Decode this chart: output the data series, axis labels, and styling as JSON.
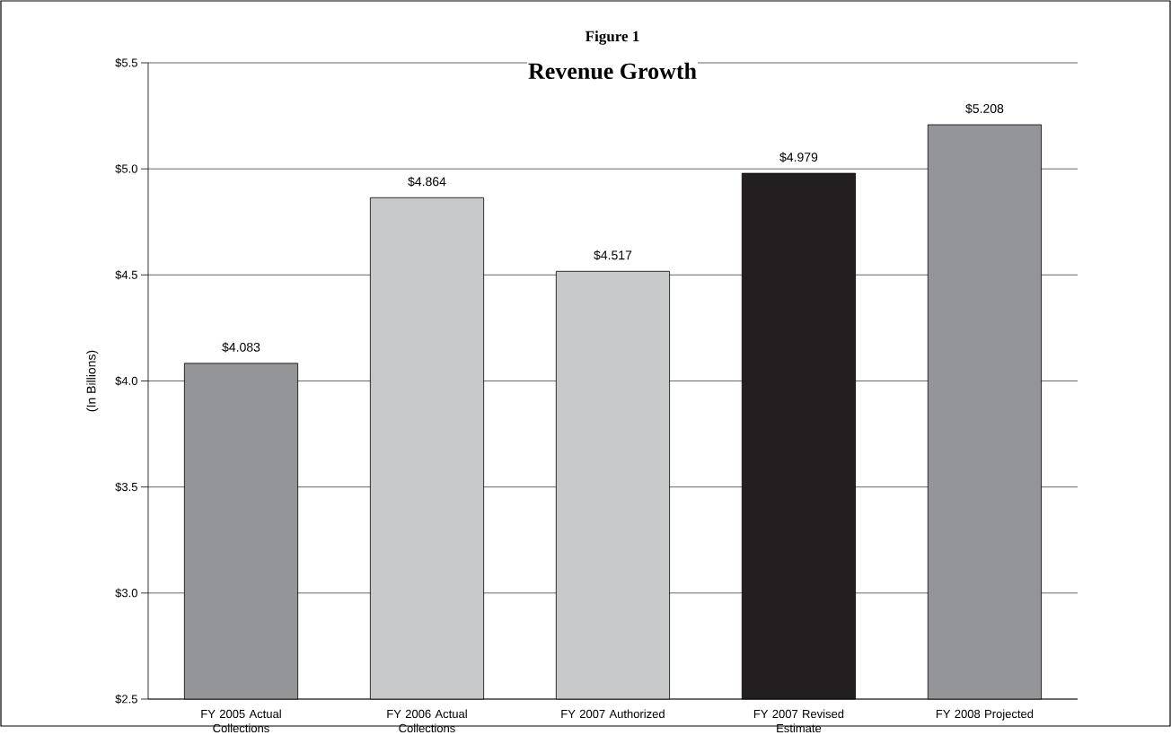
{
  "chart_data": {
    "type": "bar",
    "title": "Figure 1",
    "subtitle": "Revenue Growth",
    "ylabel": "(In Billions)",
    "categories": [
      "FY 2005 Actual Collections",
      "FY 2006 Actual Collections",
      "FY 2007 Authorized",
      "FY 2007 Revised Estimate",
      "FY 2008 Projected"
    ],
    "values": [
      4.083,
      4.864,
      4.517,
      4.979,
      5.208
    ],
    "colors": [
      "#939598",
      "#c7c8ca",
      "#c7c8ca",
      "#231f20",
      "#939598"
    ],
    "value_labels": [
      "$4.083",
      "$4.864",
      "$4.517",
      "$4.979",
      "$5.208"
    ],
    "ylim": [
      2.5,
      5.5
    ],
    "yticks": [
      {
        "value": 2.5,
        "label": "$2.5"
      },
      {
        "value": 3.0,
        "label": "$3.0"
      },
      {
        "value": 3.5,
        "label": "$3.5"
      },
      {
        "value": 4.0,
        "label": "$4.0"
      },
      {
        "value": 4.5,
        "label": "$4.5"
      },
      {
        "value": 5.0,
        "label": "$5.0"
      },
      {
        "value": 5.5,
        "label": "$5.5"
      }
    ],
    "grid": "y"
  }
}
